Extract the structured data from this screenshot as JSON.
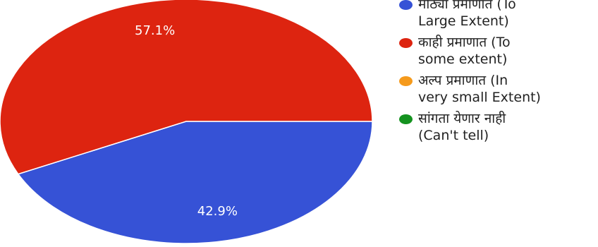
{
  "chart_data": {
    "type": "pie",
    "title": "",
    "slices": [
      {
        "label": "मोठ्या प्रमाणात (To\nLarge Extent)",
        "value": 42.9,
        "value_label": "42.9%",
        "color": "#3652d6"
      },
      {
        "label": "काही प्रमाणात (To\nsome extent)",
        "value": 57.1,
        "value_label": "57.1%",
        "color": "#dd2410"
      },
      {
        "label": "अल्प प्रमाणात (In\nvery small Extent)",
        "value": 0,
        "value_label": "",
        "color": "#f59a1c"
      },
      {
        "label": "सांगता येणार नाही\n(Can't tell)",
        "value": 0,
        "value_label": "",
        "color": "#14921f"
      }
    ],
    "legend_position": "right"
  }
}
